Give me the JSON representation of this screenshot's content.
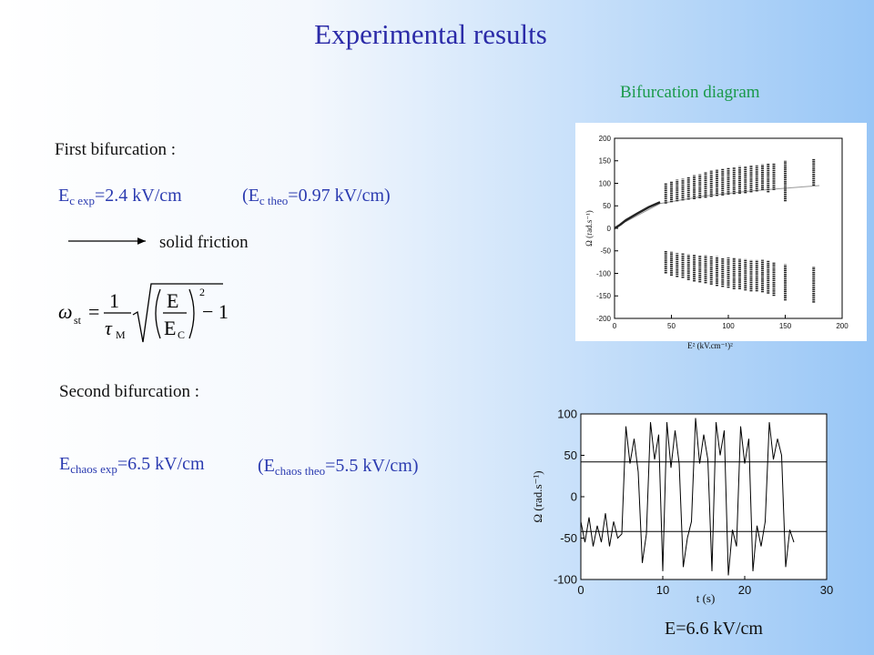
{
  "title": "Experimental results",
  "bifurcation_heading": "Bifurcation diagram",
  "first_heading": "First bifurcation :",
  "ec_exp": {
    "E": "E",
    "sub": "c exp",
    "rest": "=2.4 kV/cm"
  },
  "ec_theo": {
    "open": "(E",
    "sub": "c theo",
    "rest": "=0.97 kV/cm)"
  },
  "arrow_text": "solid friction",
  "formula": {
    "omega": "ω",
    "omega_sub": "st",
    "eq": "=",
    "num": "1",
    "tau": "τ",
    "tau_sub": "M",
    "E": "E",
    "Ec": "E",
    "Ec_sub": "C",
    "power": "2",
    "minus": "− 1"
  },
  "second_heading": "Second bifurcation :",
  "echaos_exp": {
    "E": "E",
    "sub": "chaos exp",
    "rest": "=6.5 kV/cm"
  },
  "echaos_theo": {
    "open": "(E",
    "sub": "chaos theo",
    "rest": "=5.5 kV/cm)"
  },
  "field_caption": "E=6.6 kV/cm",
  "chart_data": [
    {
      "type": "bifurcation",
      "xlabel": "E² (kV.cm⁻¹)²",
      "ylabel": "Ω (rad.s⁻¹)",
      "xlim": [
        0,
        200
      ],
      "ylim": [
        -200,
        200
      ],
      "xticks": [
        0,
        50,
        100,
        150,
        200
      ],
      "yticks": [
        -200,
        -150,
        -100,
        -50,
        0,
        50,
        100,
        150,
        200
      ],
      "color": "#222222",
      "x": [
        45,
        50,
        55,
        60,
        65,
        70,
        75,
        80,
        85,
        90,
        95,
        100,
        105,
        110,
        115,
        120,
        125,
        130,
        135,
        140,
        150,
        175
      ],
      "upper_min": [
        55,
        58,
        60,
        62,
        64,
        65,
        67,
        68,
        70,
        72,
        73,
        75,
        76,
        77,
        78,
        80,
        82,
        85,
        80,
        85,
        60,
        95
      ],
      "upper_max": [
        100,
        105,
        108,
        110,
        115,
        118,
        120,
        125,
        128,
        130,
        132,
        135,
        135,
        138,
        138,
        140,
        140,
        142,
        145,
        145,
        150,
        155
      ],
      "lower_max": [
        -50,
        -52,
        -55,
        -55,
        -58,
        -58,
        -60,
        -60,
        -62,
        -62,
        -65,
        -65,
        -65,
        -68,
        -68,
        -70,
        -70,
        -70,
        -72,
        -75,
        -80,
        -85
      ],
      "lower_min": [
        -100,
        -105,
        -108,
        -110,
        -115,
        -118,
        -120,
        -122,
        -125,
        -128,
        -130,
        -132,
        -135,
        -135,
        -138,
        -140,
        -140,
        -142,
        -145,
        -150,
        -160,
        -165
      ],
      "branch": {
        "x": [
          0,
          5,
          10,
          20,
          30,
          40
        ],
        "values": [
          0,
          8,
          18,
          33,
          47,
          58
        ]
      },
      "fit": {
        "x": [
          10,
          40,
          80,
          120,
          180
        ],
        "values": [
          15,
          55,
          72,
          83,
          95
        ],
        "color": "#999999"
      }
    },
    {
      "type": "line",
      "xlabel": "t (s)",
      "ylabel": "Ω (rad.s⁻¹)",
      "xlim": [
        0,
        30
      ],
      "ylim": [
        -100,
        100
      ],
      "xticks": [
        0,
        10,
        20,
        30
      ],
      "yticks": [
        -100,
        -50,
        0,
        50,
        100
      ],
      "color": "#000000",
      "hlines": [
        42,
        -42
      ],
      "x": [
        0,
        0.5,
        1,
        1.5,
        2,
        2.5,
        3,
        3.5,
        4,
        4.5,
        5,
        5.5,
        6,
        6.5,
        7,
        7.5,
        8,
        8.5,
        9,
        9.5,
        10,
        10.5,
        11,
        11.5,
        12,
        12.5,
        13,
        13.5,
        14,
        14.5,
        15,
        15.5,
        16,
        16.5,
        17,
        17.5,
        18,
        18.5,
        19,
        19.5,
        20,
        20.5,
        21,
        21.5,
        22,
        22.5,
        23,
        23.5,
        24,
        24.5,
        25,
        25.5,
        26
      ],
      "values": [
        -30,
        -55,
        -25,
        -60,
        -35,
        -55,
        -20,
        -60,
        -30,
        -50,
        -45,
        85,
        40,
        70,
        30,
        -80,
        -45,
        90,
        45,
        75,
        -90,
        90,
        35,
        80,
        40,
        -85,
        -50,
        -30,
        95,
        40,
        75,
        45,
        -90,
        90,
        50,
        80,
        -95,
        -40,
        -60,
        85,
        40,
        70,
        -90,
        -35,
        -60,
        -30,
        90,
        45,
        70,
        50,
        -85,
        -40,
        -55
      ]
    }
  ]
}
